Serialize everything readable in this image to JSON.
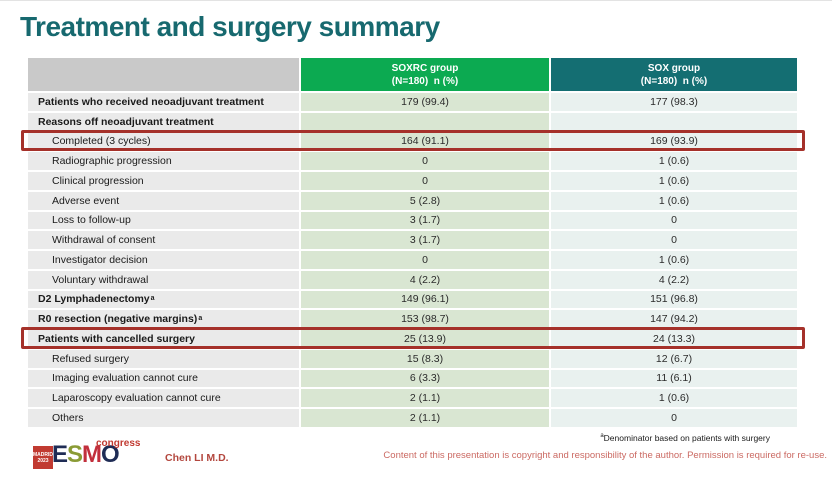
{
  "slide": {
    "title": "Treatment and surgery summary",
    "presenter": "Chen LI M.D.",
    "footnote_sup": "a",
    "footnote_text": "Denominator based on patients with surgery",
    "copyright": "Content of this presentation is copyright and responsibility of the author. Permission is required for re-use."
  },
  "logo": {
    "city": "MADRID",
    "year": "2023",
    "letters": [
      "E",
      "S",
      "M",
      "O"
    ],
    "congress": "congress"
  },
  "colors": {
    "title_teal": "#17696f",
    "header_green": "#0caa51",
    "header_teal": "#146e72",
    "label_col_bg": "#eaeaea",
    "soxrc_col_bg": "#d9e6d2",
    "sox_col_bg": "#e9f1ef",
    "highlight_red": "#a5312a",
    "copyright_red": "#cb6a63"
  },
  "table": {
    "columns": [
      {
        "label": ""
      },
      {
        "label": "SOXRC group",
        "sublabel": "(N=180)  n (%)"
      },
      {
        "label": "SOX group",
        "sublabel": "(N=180)  n (%)"
      }
    ],
    "rows": [
      {
        "label": "Patients who received neoadjuvant treatment",
        "bold": true,
        "indent": false,
        "soxrc": "179 (99.4)",
        "sox": "177 (98.3)"
      },
      {
        "label": "Reasons off neoadjuvant treatment",
        "bold": true,
        "indent": false,
        "soxrc": "",
        "sox": ""
      },
      {
        "label": "Completed (3 cycles)",
        "bold": false,
        "indent": true,
        "soxrc": "164 (91.1)",
        "sox": "169 (93.9)",
        "highlight": true
      },
      {
        "label": "Radiographic progression",
        "bold": false,
        "indent": true,
        "soxrc": "0",
        "sox": "1 (0.6)"
      },
      {
        "label": "Clinical progression",
        "bold": false,
        "indent": true,
        "soxrc": "0",
        "sox": "1 (0.6)"
      },
      {
        "label": "Adverse event",
        "bold": false,
        "indent": true,
        "soxrc": "5 (2.8)",
        "sox": "1 (0.6)"
      },
      {
        "label": "Loss to follow-up",
        "bold": false,
        "indent": true,
        "soxrc": "3 (1.7)",
        "sox": "0"
      },
      {
        "label": "Withdrawal of consent",
        "bold": false,
        "indent": true,
        "soxrc": "3 (1.7)",
        "sox": "0"
      },
      {
        "label": "Investigator decision",
        "bold": false,
        "indent": true,
        "soxrc": "0",
        "sox": "1 (0.6)"
      },
      {
        "label": "Voluntary withdrawal",
        "bold": false,
        "indent": true,
        "soxrc": "4 (2.2)",
        "sox": "4 (2.2)"
      },
      {
        "label": "D2 Lymphadenectomy",
        "sup": "a",
        "bold": true,
        "indent": false,
        "soxrc": "149 (96.1)",
        "sox": "151 (96.8)"
      },
      {
        "label": "R0 resection (negative margins)",
        "sup": "a",
        "bold": true,
        "indent": false,
        "soxrc": "153 (98.7)",
        "sox": "147 (94.2)"
      },
      {
        "label": "Patients with cancelled surgery",
        "bold": true,
        "indent": false,
        "soxrc": "25 (13.9)",
        "sox": "24 (13.3)",
        "highlight": true
      },
      {
        "label": "Refused surgery",
        "bold": false,
        "indent": true,
        "soxrc": "15 (8.3)",
        "sox": "12 (6.7)"
      },
      {
        "label": "Imaging evaluation cannot cure",
        "bold": false,
        "indent": true,
        "soxrc": "6 (3.3)",
        "sox": "11 (6.1)"
      },
      {
        "label": "Laparoscopy evaluation cannot cure",
        "bold": false,
        "indent": true,
        "soxrc": "2 (1.1)",
        "sox": "1 (0.6)"
      },
      {
        "label": "Others",
        "bold": false,
        "indent": true,
        "soxrc": "2 (1.1)",
        "sox": "0"
      }
    ]
  }
}
